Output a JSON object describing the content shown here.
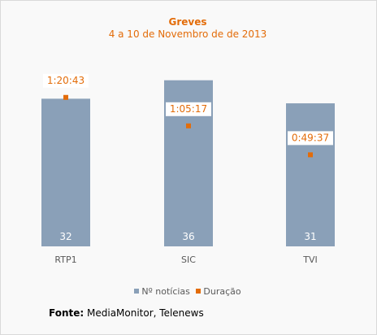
{
  "chart_data": {
    "type": "bar",
    "title": "Greves",
    "subtitle": "4 a 10 de Novembro de de 2013",
    "categories": [
      "RTP1",
      "SIC",
      "TVI"
    ],
    "series": [
      {
        "name": "Nº notícias",
        "values": [
          32,
          36,
          31
        ],
        "labels": [
          "32",
          "36",
          "31"
        ],
        "color": "#8aa0b8"
      },
      {
        "name": "Duração",
        "marker": "square",
        "values_seconds": [
          4843,
          3917,
          2977
        ],
        "labels": [
          "1:20:43",
          "1:05:17",
          "0:49:37"
        ],
        "color": "#e36c09"
      }
    ],
    "ylim_bars": [
      0,
      40
    ],
    "ylim_duration_seconds": [
      0,
      6000
    ],
    "grid": false,
    "legend_position": "bottom"
  },
  "source": {
    "label": "Fonte:",
    "text": "MediaMonitor, Telenews"
  }
}
